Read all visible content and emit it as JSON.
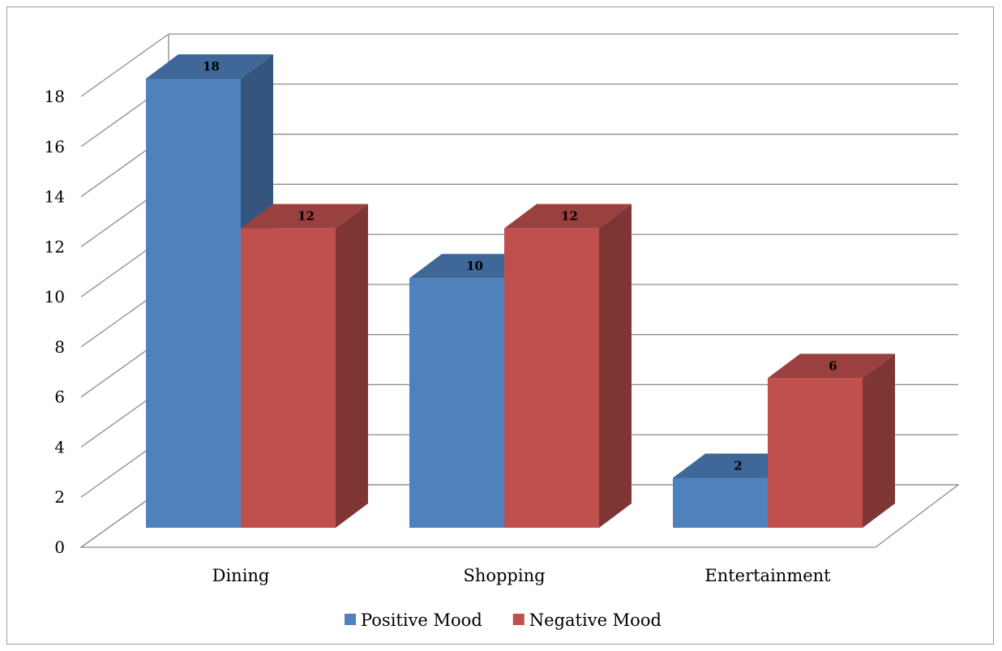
{
  "chart_data": {
    "type": "bar",
    "style": "3d-clustered-column",
    "title": "",
    "xlabel": "",
    "ylabel": "",
    "categories": [
      "Dining",
      "Shopping",
      "Entertainment"
    ],
    "series": [
      {
        "name": "Positive Mood",
        "color": "#4F81BD",
        "values": [
          18,
          10,
          2
        ]
      },
      {
        "name": "Negative Mood",
        "color": "#C0504D",
        "values": [
          12,
          12,
          6
        ]
      }
    ],
    "ylim": [
      0,
      18
    ],
    "yticks": [
      "0",
      "2",
      "4",
      "6",
      "8",
      "10",
      "12",
      "14",
      "16",
      "18"
    ],
    "data_labels": true,
    "grid": true,
    "legend": "bottom"
  }
}
